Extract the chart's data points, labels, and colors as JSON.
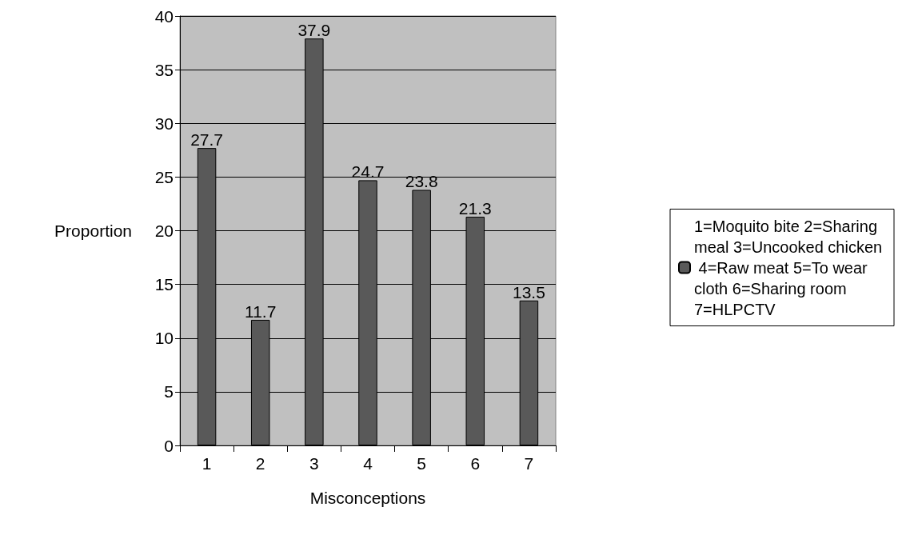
{
  "chart_data": {
    "type": "bar",
    "xlabel": "Misconceptions",
    "ylabel": "Proportion",
    "categories": [
      "1",
      "2",
      "3",
      "4",
      "5",
      "6",
      "7"
    ],
    "series": [
      {
        "name": "1=Moquito bite 2=Sharing meal 3=Uncooked chicken 4=Raw meat 5=To wear cloth 6=Sharing room 7=HLPCTV",
        "color": "#595959",
        "values": [
          27.7,
          11.7,
          37.9,
          24.7,
          23.8,
          21.3,
          13.5
        ]
      }
    ],
    "ylim": [
      0,
      40
    ],
    "yticks": [
      0,
      5,
      10,
      15,
      20,
      25,
      30,
      35,
      40
    ],
    "grid": "y",
    "legend": "right",
    "data_labels": true
  }
}
